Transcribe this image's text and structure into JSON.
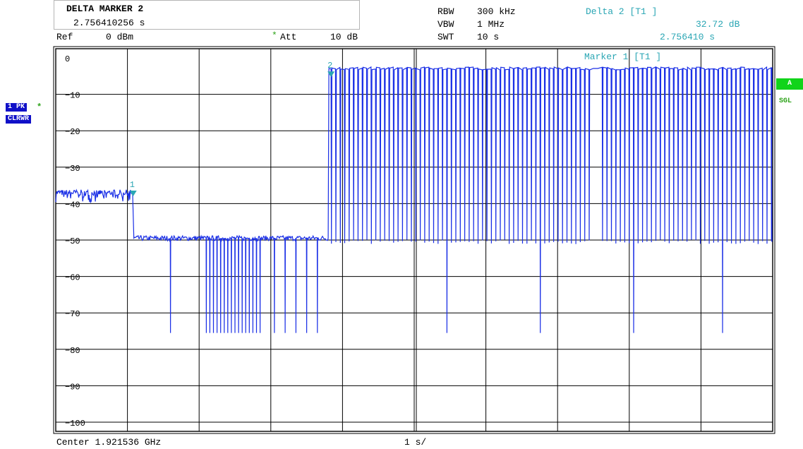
{
  "header": {
    "marker_title": "DELTA MARKER 2",
    "marker_value": "2.756410256 s",
    "rbw_label": "RBW",
    "rbw_value": "300 kHz",
    "vbw_label": "VBW",
    "vbw_value": "1 MHz",
    "swt_label": "SWT",
    "swt_value": "10 s",
    "delta_label": "Delta 2 [T1 ]",
    "delta_db": "32.72 dB",
    "delta_time": "2.756410 s",
    "ref_label": "Ref",
    "ref_value": "0 dBm",
    "att_label": "Att",
    "att_value": "10 dB",
    "att_star": "*"
  },
  "side": {
    "trace_badge": "1 PK",
    "trace_star": "*",
    "mode_badge": "CLRWR",
    "a_badge": "A",
    "sgl_label": "SGL"
  },
  "footer": {
    "center_label": "Center 1.921536 GHz",
    "span_label": "1 s/"
  },
  "colors": {
    "trace": "#1a2fe6",
    "marker": "#2aa6b4",
    "grid": "#000000",
    "badge_blue": "#1010c8",
    "badge_green": "#11d41a"
  },
  "chart_data": {
    "type": "line",
    "title": "",
    "xlabel": "Center 1.921536 GHz",
    "ylabel": "",
    "x_unit": "s",
    "xlim": [
      0,
      10
    ],
    "ylim": [
      -105,
      3
    ],
    "y_ticks": [
      0,
      -10,
      -20,
      -30,
      -40,
      -50,
      -60,
      -70,
      -80,
      -90,
      -100
    ],
    "y_tick_labels": [
      "0",
      "−10",
      "−20",
      "−30",
      "−40",
      "−50",
      "−60",
      "−70",
      "−80",
      "−90",
      "−100"
    ],
    "grid": true,
    "legend": "none",
    "series": [
      {
        "values_description_segments": [
          {
            "x_start": 0.0,
            "x_end": 1.08,
            "level_dbm": -37
          },
          {
            "x_start": 1.08,
            "x_end": 3.8,
            "level_dbm": -49.5
          },
          {
            "x_start": 3.8,
            "x_end": 10.0,
            "level_dbm": -2.9
          }
        ],
        "dips_in_mid_segment_x": [
          1.6,
          2.1,
          2.15,
          2.2,
          2.25,
          2.3,
          2.35,
          2.4,
          2.45,
          2.5,
          2.55,
          2.6,
          2.65,
          2.7,
          2.75,
          2.8,
          2.85,
          3.05,
          3.2,
          3.35,
          3.5,
          3.65
        ],
        "dips_in_mid_segment_dbm": -75.5,
        "bursts_in_high_segment_floor_dbm": -50.5,
        "deep_dips_high_segment_x": [
          5.45,
          6.75,
          8.05,
          9.3
        ],
        "deep_dips_high_segment_dbm": -75.5
      }
    ],
    "markers": [
      {
        "id": "1",
        "x": 1.08,
        "y": -37.2
      },
      {
        "id": "2",
        "x": 3.84,
        "y": -4.5
      }
    ],
    "marker1_label": "Marker 1 [T1 ]"
  }
}
